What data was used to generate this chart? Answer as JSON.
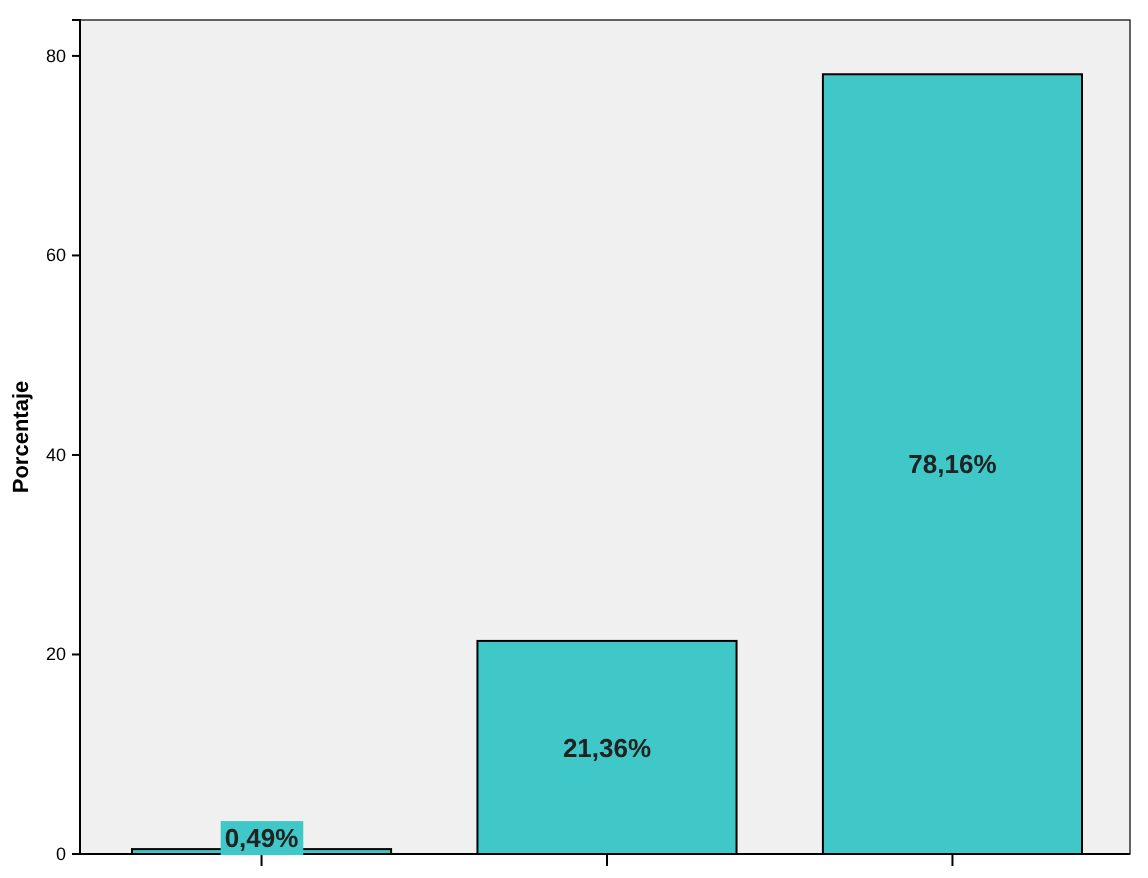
{
  "chart_data": {
    "type": "bar",
    "ylabel": "Porcentaje",
    "categories": [
      null,
      null,
      null
    ],
    "values": [
      0.49,
      21.36,
      78.16
    ],
    "value_labels": [
      "0,49%",
      "21,36%",
      "78,16%"
    ],
    "color": "#40c8c8",
    "ylim": [
      0,
      83.6
    ],
    "yticks": [
      0,
      20,
      40,
      60,
      80
    ],
    "grid": false
  }
}
